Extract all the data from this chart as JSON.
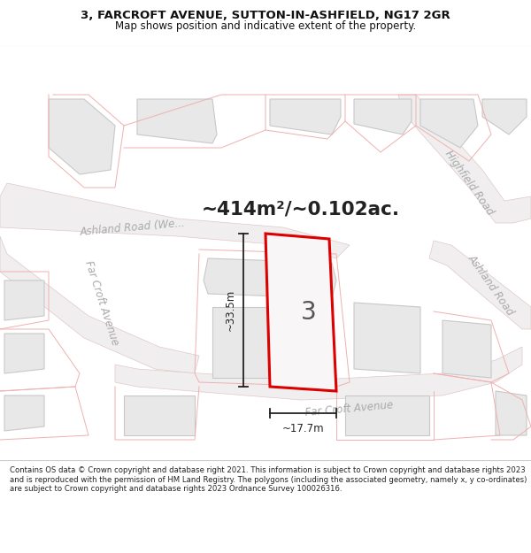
{
  "title_line1": "3, FARCROFT AVENUE, SUTTON-IN-ASHFIELD, NG17 2GR",
  "title_line2": "Map shows position and indicative extent of the property.",
  "area_text": "~414m²/~0.102ac.",
  "number_label": "3",
  "dim_vertical": "~33.5m",
  "dim_horizontal": "~17.7m",
  "footer_text": "Contains OS data © Crown copyright and database right 2021. This information is subject to Crown copyright and database rights 2023 and is reproduced with the permission of HM Land Registry. The polygons (including the associated geometry, namely x, y co-ordinates) are subject to Crown copyright and database rights 2023 Ordnance Survey 100026316.",
  "bg_color": "#ffffff",
  "block_fill": "#e8e8e8",
  "block_edge": "#c8c8c8",
  "road_fill": "#f0eeee",
  "road_edge": "#e0c8c8",
  "plot_edge_red": "#dd0000",
  "plot_edge_pink": "#f0b0b0",
  "dim_color": "#222222",
  "road_label_color": "#aaaaaa",
  "title_color": "#111111",
  "footer_color": "#222222"
}
